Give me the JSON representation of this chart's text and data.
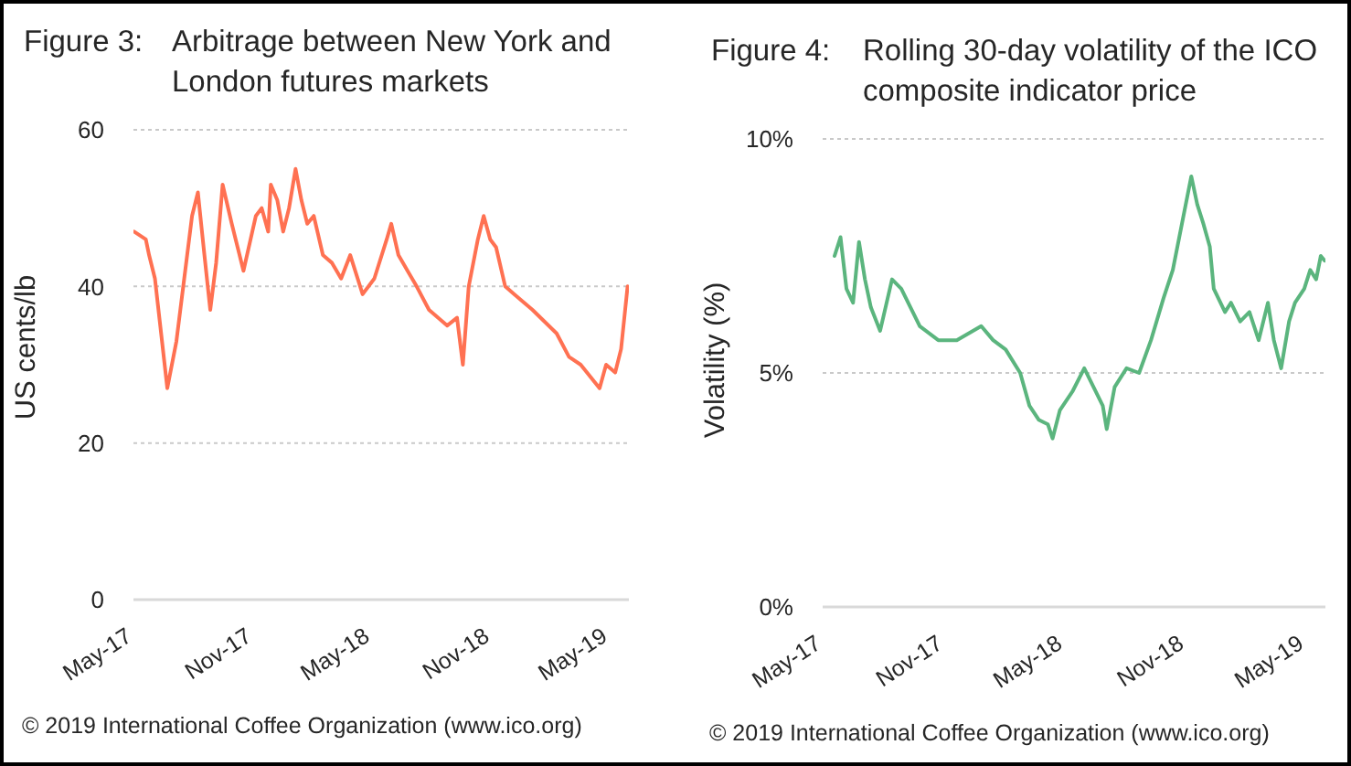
{
  "chart_data": [
    {
      "type": "line",
      "title": "Figure 3:",
      "subtitle": "Arbitrage between New York and London futures markets",
      "ylabel": "US cents/lb",
      "x": [
        "2017-05-02",
        "2017-05-20",
        "2017-05-25",
        "2017-06-03",
        "2017-06-22",
        "2017-07-06",
        "2017-07-30",
        "2017-08-08",
        "2017-08-18",
        "2017-08-27",
        "2017-09-05",
        "2017-09-15",
        "2017-09-29",
        "2017-10-08",
        "2017-10-17",
        "2017-11-05",
        "2017-11-14",
        "2017-11-24",
        "2017-11-28",
        "2017-12-08",
        "2017-12-17",
        "2017-12-26",
        "2018-01-05",
        "2018-01-14",
        "2018-01-23",
        "2018-02-02",
        "2018-02-16",
        "2018-03-02",
        "2018-03-16",
        "2018-03-30",
        "2018-04-18",
        "2018-05-06",
        "2018-05-25",
        "2018-06-01",
        "2018-06-12",
        "2018-06-26",
        "2018-07-10",
        "2018-07-29",
        "2018-08-26",
        "2018-09-10",
        "2018-09-19",
        "2018-09-28",
        "2018-10-12",
        "2018-10-21",
        "2018-10-31",
        "2018-11-09",
        "2018-11-23",
        "2018-12-07",
        "2019-01-04",
        "2019-02-10",
        "2019-03-01",
        "2019-03-19",
        "2019-04-17",
        "2019-04-27",
        "2019-05-11",
        "2019-05-20",
        "2019-05-30"
      ],
      "series": [
        {
          "color": "#ff7152",
          "values": [
            47,
            46,
            44,
            41,
            27,
            33,
            49,
            52,
            44,
            37,
            43,
            53,
            48,
            45,
            42,
            49,
            50,
            47,
            53,
            51,
            47,
            50,
            55,
            51,
            48,
            49,
            44,
            43,
            41,
            44,
            39,
            41,
            46,
            48,
            44,
            42,
            40,
            37,
            35,
            36,
            30,
            40,
            46,
            49,
            46,
            45,
            40,
            39,
            37,
            34,
            31,
            30,
            27,
            30,
            29,
            32,
            40
          ]
        }
      ],
      "xlim": [
        "2017-05-01",
        "2019-06-01"
      ],
      "xticks": [
        {
          "value": "2017-05-01",
          "label": "May-17"
        },
        {
          "value": "2017-11-01",
          "label": "Nov-17"
        },
        {
          "value": "2018-05-01",
          "label": "May-18"
        },
        {
          "value": "2018-11-01",
          "label": "Nov-18"
        },
        {
          "value": "2019-05-01",
          "label": "May-19"
        }
      ],
      "ylim": [
        0,
        60
      ],
      "yticks": [
        0,
        20,
        40,
        60
      ],
      "grid": "y",
      "annotations": [
        "© 2019 International Coffee Organization (www.ico.org)"
      ]
    },
    {
      "type": "line",
      "title": "Figure 4:",
      "subtitle": "Rolling 30-day volatility of the ICO composite indicator price",
      "ylabel": "Volatility (%)",
      "x": [
        "2017-05-19",
        "2017-05-28",
        "2017-06-06",
        "2017-06-16",
        "2017-06-25",
        "2017-07-04",
        "2017-07-13",
        "2017-07-27",
        "2017-08-14",
        "2017-08-28",
        "2017-09-11",
        "2017-09-25",
        "2017-10-23",
        "2017-11-20",
        "2017-12-27",
        "2018-01-14",
        "2018-02-02",
        "2018-02-24",
        "2018-03-10",
        "2018-03-24",
        "2018-04-07",
        "2018-04-14",
        "2018-04-25",
        "2018-05-14",
        "2018-06-01",
        "2018-06-15",
        "2018-06-29",
        "2018-07-05",
        "2018-07-17",
        "2018-08-04",
        "2018-08-23",
        "2018-09-10",
        "2018-09-29",
        "2018-10-13",
        "2018-10-27",
        "2018-11-10",
        "2018-11-19",
        "2018-11-28",
        "2018-12-08",
        "2018-12-14",
        "2018-12-31",
        "2019-01-09",
        "2019-01-23",
        "2019-02-06",
        "2019-02-20",
        "2019-03-06",
        "2019-03-15",
        "2019-03-26",
        "2019-04-07",
        "2019-04-16",
        "2019-04-30",
        "2019-05-09",
        "2019-05-18",
        "2019-05-25",
        "2019-05-31"
      ],
      "series": [
        {
          "color": "#5bb57e",
          "values": [
            7.5,
            7.9,
            6.8,
            6.5,
            7.8,
            7.0,
            6.4,
            5.9,
            7.0,
            6.8,
            6.4,
            6.0,
            5.7,
            5.7,
            6.0,
            5.7,
            5.5,
            5.0,
            4.3,
            4.0,
            3.9,
            3.6,
            4.2,
            4.6,
            5.1,
            4.7,
            4.3,
            3.8,
            4.7,
            5.1,
            5.0,
            5.7,
            6.6,
            7.2,
            8.2,
            9.2,
            8.6,
            8.2,
            7.7,
            6.8,
            6.3,
            6.5,
            6.1,
            6.3,
            5.7,
            6.5,
            5.7,
            5.1,
            6.1,
            6.5,
            6.8,
            7.2,
            7.0,
            7.5,
            7.4
          ]
        }
      ],
      "xlim": [
        "2017-05-01",
        "2019-06-01"
      ],
      "xticks": [
        {
          "value": "2017-05-01",
          "label": "May-17"
        },
        {
          "value": "2017-11-01",
          "label": "Nov-17"
        },
        {
          "value": "2018-05-01",
          "label": "May-18"
        },
        {
          "value": "2018-11-01",
          "label": "Nov-18"
        },
        {
          "value": "2019-05-01",
          "label": "May-19"
        }
      ],
      "ylim": [
        0,
        10
      ],
      "yticks": [
        {
          "value": 0,
          "label": "0%"
        },
        {
          "value": 5,
          "label": "5%"
        },
        {
          "value": 10,
          "label": "10%"
        }
      ],
      "grid": "y",
      "annotations": [
        "© 2019 International Coffee Organization (www.ico.org)"
      ]
    }
  ]
}
